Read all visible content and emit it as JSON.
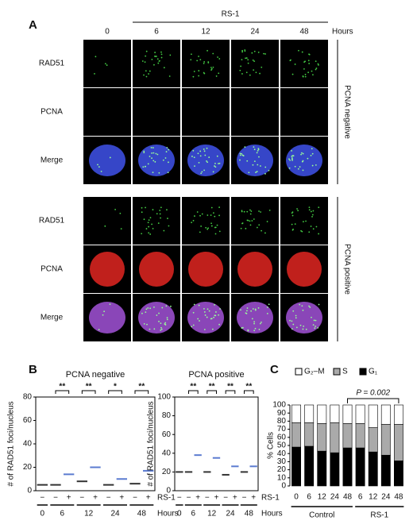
{
  "panel_a": {
    "label": "A",
    "treatment": "RS-1",
    "columns": [
      "0",
      "6",
      "12",
      "24",
      "48"
    ],
    "unit": "Hours",
    "rows": [
      "RAD51",
      "PCNA",
      "Merge",
      "RAD51",
      "PCNA",
      "Merge"
    ],
    "groups": [
      "PCNA negative",
      "PCNA positive"
    ]
  },
  "chart_data": [
    {
      "type": "dot",
      "panel": "B",
      "title": "PCNA negative",
      "y_label": "# of RAD51 foci/nucleus",
      "categories": [
        "−",
        "−",
        "+",
        "−",
        "+",
        "−",
        "+",
        "−",
        "+"
      ],
      "hours": [
        "0",
        "6",
        "12",
        "24",
        "48"
      ],
      "row_label": "RS-1",
      "hours_label": "Hours",
      "values": [
        5,
        5,
        14,
        8,
        20,
        5,
        10,
        6,
        17
      ],
      "colors": [
        "#333333",
        "#333333",
        "#5b7bd0",
        "#333333",
        "#5b7bd0",
        "#333333",
        "#5b7bd0",
        "#333333",
        "#5b7bd0"
      ],
      "annotations": [
        "**",
        "**",
        "*",
        "**"
      ],
      "ylim": [
        0,
        80
      ],
      "yticks": [
        0,
        20,
        40,
        60,
        80
      ]
    },
    {
      "type": "dot",
      "title": "PCNA positive",
      "y_label": "# of RAD51 foci/nucleus",
      "categories": [
        "−",
        "−",
        "+",
        "−",
        "+",
        "−",
        "+",
        "−",
        "+"
      ],
      "hours": [
        "0",
        "6",
        "12",
        "24",
        "48"
      ],
      "row_label": "RS-1",
      "hours_label": "Hours",
      "values": [
        20,
        20,
        38,
        20,
        35,
        17,
        26,
        20,
        26
      ],
      "colors": [
        "#333333",
        "#333333",
        "#5b7bd0",
        "#333333",
        "#5b7bd0",
        "#333333",
        "#5b7bd0",
        "#333333",
        "#5b7bd0"
      ],
      "annotations": [
        "**",
        "**",
        "**",
        "**"
      ],
      "ylim": [
        0,
        100
      ],
      "yticks": [
        0,
        20,
        40,
        60,
        80,
        100
      ]
    },
    {
      "type": "stacked_bar",
      "panel": "C",
      "y_label": "% Cells",
      "categories": [
        "0",
        "6",
        "12",
        "24",
        "48",
        "6",
        "12",
        "24",
        "48"
      ],
      "group_labels": [
        "Control",
        "RS-1"
      ],
      "annotation": "P = 0.002",
      "series": [
        {
          "name": "G₁",
          "color": "#000000",
          "values": [
            48,
            49,
            43,
            41,
            47,
            47,
            42,
            38,
            31
          ]
        },
        {
          "name": "S",
          "color": "#aaaaaa",
          "values": [
            30,
            29,
            34,
            37,
            30,
            30,
            30,
            38,
            45
          ]
        },
        {
          "name": "G₂–M",
          "color": "#ffffff",
          "values": [
            22,
            22,
            23,
            22,
            23,
            23,
            28,
            24,
            24
          ]
        }
      ],
      "ylim": [
        0,
        100
      ],
      "yticks": [
        0,
        10,
        20,
        30,
        40,
        50,
        60,
        70,
        80,
        90,
        100
      ]
    }
  ]
}
